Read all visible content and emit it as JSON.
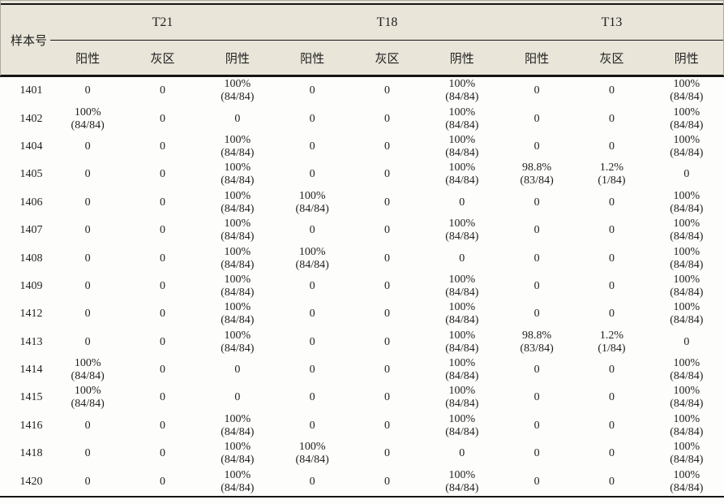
{
  "table": {
    "row_header_label": "样本号",
    "groups": [
      {
        "label": "T21"
      },
      {
        "label": "T18"
      },
      {
        "label": "T13"
      }
    ],
    "sub_headers": [
      "阳性",
      "灰区",
      "阴性"
    ],
    "rows": [
      {
        "sample": "1401",
        "values": [
          "0",
          "0",
          "100%\n(84/84)",
          "0",
          "0",
          "100%\n(84/84)",
          "0",
          "0",
          "100%\n(84/84)"
        ]
      },
      {
        "sample": "1402",
        "values": [
          "100%\n(84/84)",
          "0",
          "0",
          "0",
          "0",
          "100%\n(84/84)",
          "0",
          "0",
          "100%\n(84/84)"
        ]
      },
      {
        "sample": "1404",
        "values": [
          "0",
          "0",
          "100%\n(84/84)",
          "0",
          "0",
          "100%\n(84/84)",
          "0",
          "0",
          "100%\n(84/84)"
        ]
      },
      {
        "sample": "1405",
        "values": [
          "0",
          "0",
          "100%\n(84/84)",
          "0",
          "0",
          "100%\n(84/84)",
          "98.8%\n(83/84)",
          "1.2%\n(1/84)",
          "0"
        ]
      },
      {
        "sample": "1406",
        "values": [
          "0",
          "0",
          "100%\n(84/84)",
          "100%\n(84/84)",
          "0",
          "0",
          "0",
          "0",
          "100%\n(84/84)"
        ]
      },
      {
        "sample": "1407",
        "values": [
          "0",
          "0",
          "100%\n(84/84)",
          "0",
          "0",
          "100%\n(84/84)",
          "0",
          "0",
          "100%\n(84/84)"
        ]
      },
      {
        "sample": "1408",
        "values": [
          "0",
          "0",
          "100%\n(84/84)",
          "100%\n(84/84)",
          "0",
          "0",
          "0",
          "0",
          "100%\n(84/84)"
        ]
      },
      {
        "sample": "1409",
        "values": [
          "0",
          "0",
          "100%\n(84/84)",
          "0",
          "0",
          "100%\n(84/84)",
          "0",
          "0",
          "100%\n(84/84)"
        ]
      },
      {
        "sample": "1412",
        "values": [
          "0",
          "0",
          "100%\n(84/84)",
          "0",
          "0",
          "100%\n(84/84)",
          "0",
          "0",
          "100%\n(84/84)"
        ]
      },
      {
        "sample": "1413",
        "values": [
          "0",
          "0",
          "100%\n(84/84)",
          "0",
          "0",
          "100%\n(84/84)",
          "98.8%\n(83/84)",
          "1.2%\n(1/84)",
          "0"
        ]
      },
      {
        "sample": "1414",
        "values": [
          "100%\n(84/84)",
          "0",
          "0",
          "0",
          "0",
          "100%\n(84/84)",
          "0",
          "0",
          "100%\n(84/84)"
        ]
      },
      {
        "sample": "1415",
        "values": [
          "100%\n(84/84)",
          "0",
          "0",
          "0",
          "0",
          "100%\n(84/84)",
          "0",
          "0",
          "100%\n(84/84)"
        ]
      },
      {
        "sample": "1416",
        "values": [
          "0",
          "0",
          "100%\n(84/84)",
          "0",
          "0",
          "100%\n(84/84)",
          "0",
          "0",
          "100%\n(84/84)"
        ]
      },
      {
        "sample": "1418",
        "values": [
          "0",
          "0",
          "100%\n(84/84)",
          "100%\n(84/84)",
          "0",
          "0",
          "0",
          "0",
          "100%\n(84/84)"
        ]
      },
      {
        "sample": "1420",
        "values": [
          "0",
          "0",
          "100%\n(84/84)",
          "0",
          "0",
          "100%\n(84/84)",
          "0",
          "0",
          "100%\n(84/84)"
        ]
      }
    ]
  },
  "colors": {
    "header_bg": "#e9e5d9",
    "body_bg": "#fdfdfb",
    "rule": "#161616",
    "frame": "#a9a99e",
    "text": "#1f1f1f"
  }
}
